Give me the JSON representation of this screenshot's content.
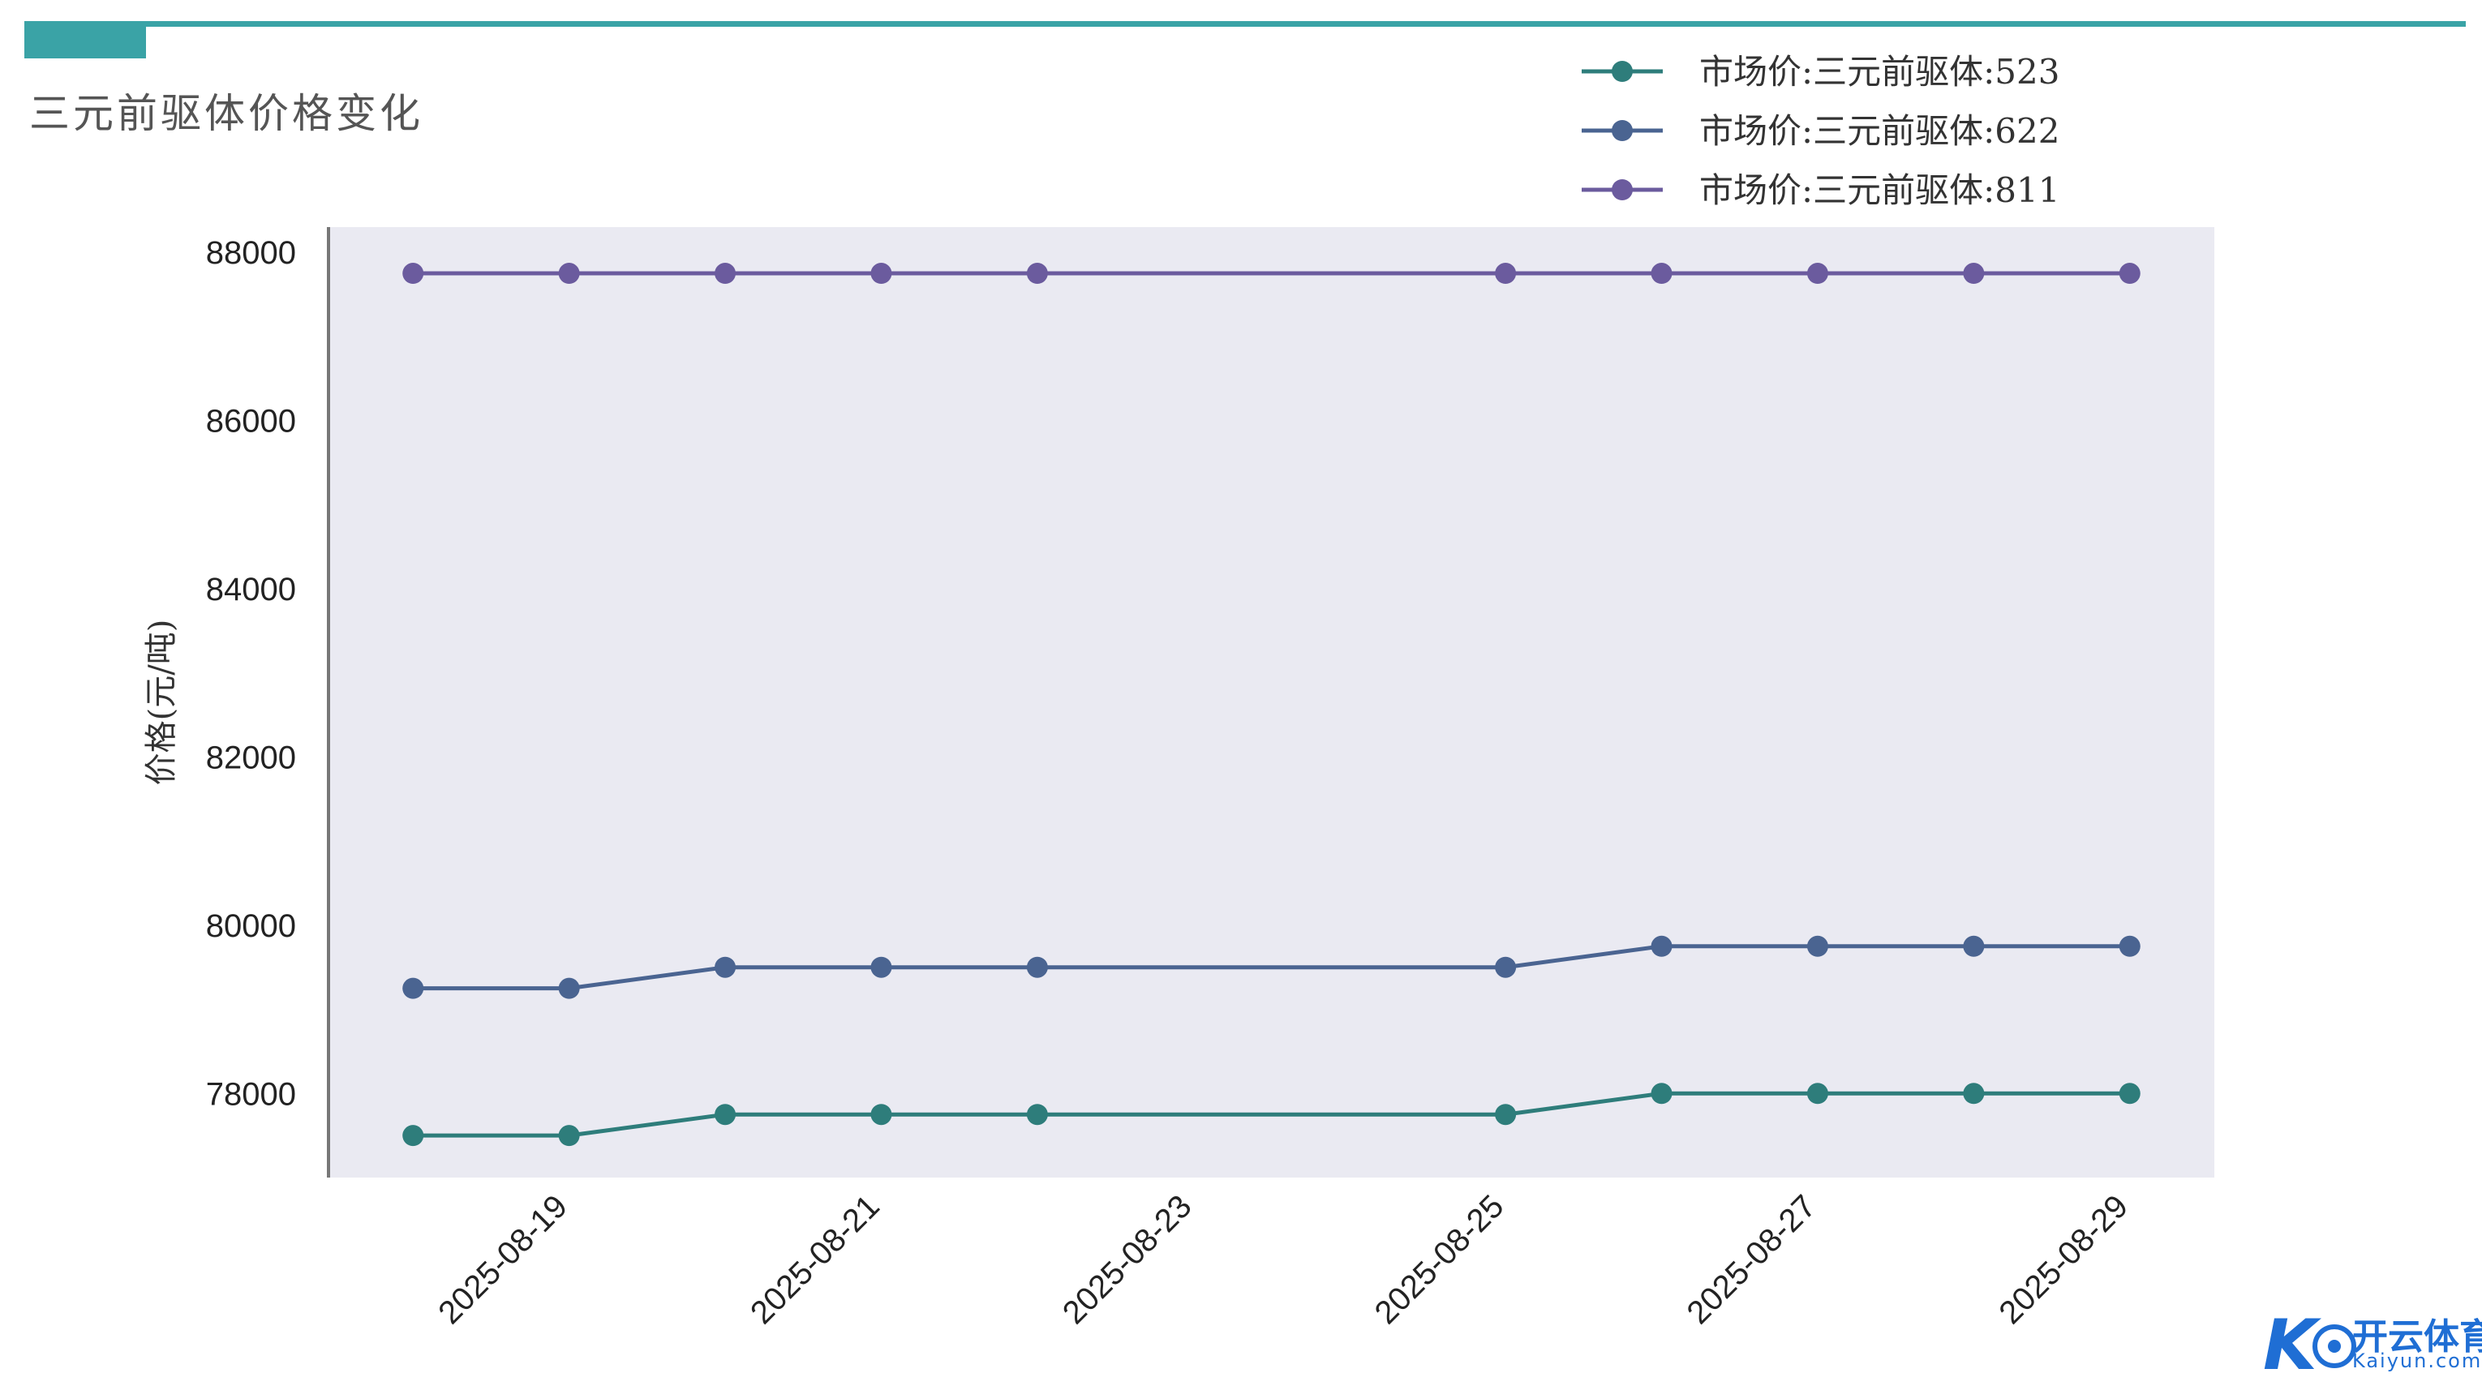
{
  "header": {
    "title": "三元前驱体价格变化",
    "accent_color": "#3aa3a6"
  },
  "chart_data": {
    "type": "line",
    "title": "三元前驱体价格变化",
    "xlabel": "",
    "ylabel": "价格(元/吨)",
    "x": [
      "2025-08-18",
      "2025-08-19",
      "2025-08-20",
      "2025-08-21",
      "2025-08-22",
      "2025-08-25",
      "2025-08-26",
      "2025-08-27",
      "2025-08-28",
      "2025-08-29"
    ],
    "xticks": [
      "2025-08-19",
      "2025-08-21",
      "2025-08-23",
      "2025-08-25",
      "2025-08-27",
      "2025-08-29"
    ],
    "yticks": [
      78000,
      80000,
      82000,
      84000,
      86000,
      88000
    ],
    "ylim": [
      77000,
      88300
    ],
    "xlim": [
      "2025-08-17T11:00",
      "2025-08-29T13:00"
    ],
    "grid": false,
    "legend_position": "top-right",
    "plot_background": "#eaeaf2",
    "series": [
      {
        "name": "市场价:三元前驱体:523",
        "color": "#2e7d7b",
        "values": [
          77500,
          77500,
          77750,
          77750,
          77750,
          77750,
          78000,
          78000,
          78000,
          78000
        ]
      },
      {
        "name": "市场价:三元前驱体:622",
        "color": "#4a6491",
        "values": [
          79250,
          79250,
          79500,
          79500,
          79500,
          79500,
          79750,
          79750,
          79750,
          79750
        ]
      },
      {
        "name": "市场价:三元前驱体:811",
        "color": "#6b5b9e",
        "values": [
          87750,
          87750,
          87750,
          87750,
          87750,
          87750,
          87750,
          87750,
          87750,
          87750
        ]
      }
    ]
  },
  "watermark": {
    "main": "开云体育",
    "sub": "Kaiyun.com",
    "letter": "K",
    "icon": "soccer-ball-logo",
    "color": "#1f6ed4"
  }
}
